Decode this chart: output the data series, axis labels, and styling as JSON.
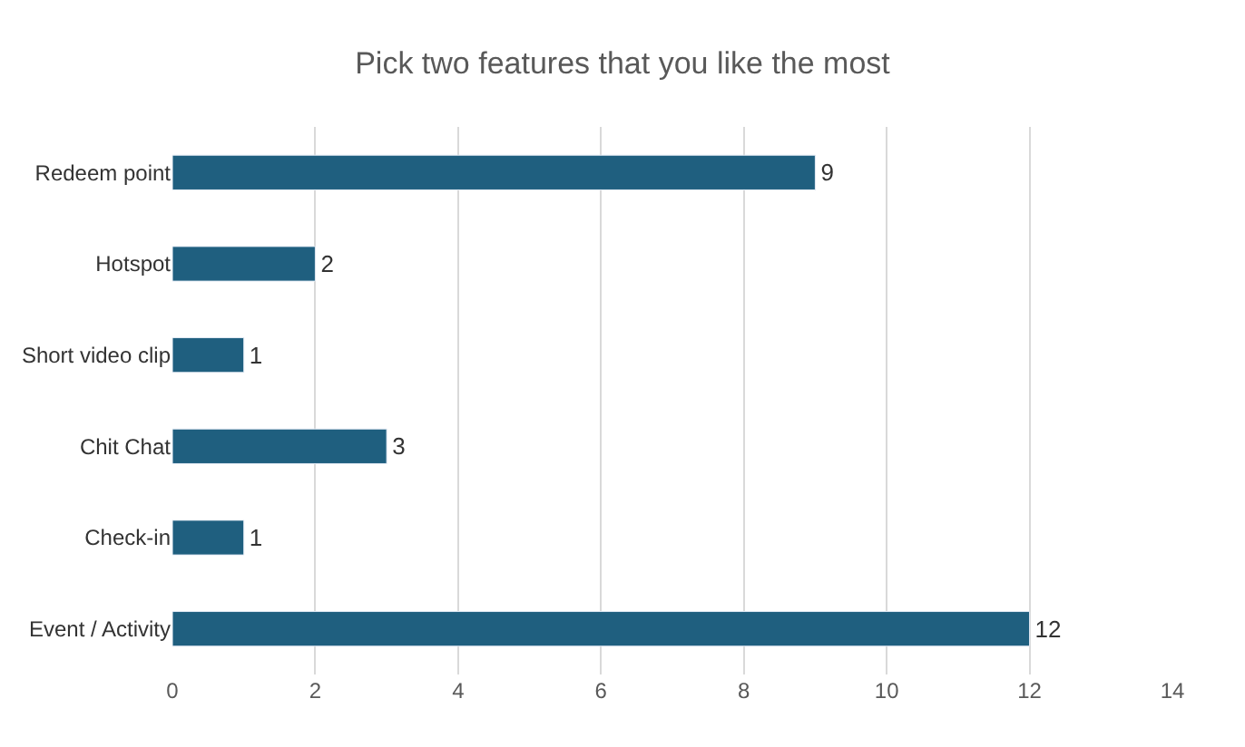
{
  "chart_data": {
    "type": "bar",
    "orientation": "horizontal",
    "title": "Pick two features that you like the most",
    "categories": [
      "Redeem point",
      "Hotspot",
      "Short video clip",
      "Chit Chat",
      "Check-in",
      "Event / Activity"
    ],
    "values": [
      9,
      2,
      1,
      3,
      1,
      12
    ],
    "color": "#1f5f7f",
    "xlim": [
      0,
      14
    ],
    "xticks": [
      0,
      2,
      4,
      6,
      8,
      10,
      12,
      14
    ],
    "grid": "x",
    "data_labels": true,
    "legend": false
  }
}
